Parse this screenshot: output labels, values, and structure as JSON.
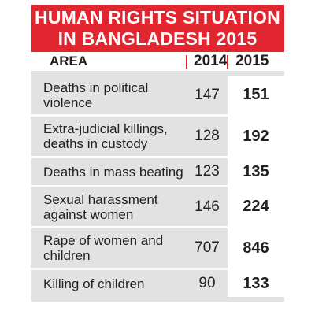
{
  "header": {
    "title_line1": "HUMAN RIGHTS SITUATION",
    "title_line2": "IN BANGLADESH 2015"
  },
  "chart_data": {
    "type": "table",
    "title": "HUMAN RIGHTS SITUATION IN BANGLADESH 2015",
    "columns": [
      "AREA",
      "2014",
      "2015"
    ],
    "rows": [
      {
        "area_lines": [
          "Deaths in political",
          "violence"
        ],
        "v2014": "147",
        "v2015": "151"
      },
      {
        "area_lines": [
          "Extra-judicial killings,",
          "deaths in custody"
        ],
        "v2014": "128",
        "v2015": "192"
      },
      {
        "area_lines": [
          "Deaths in mass beating"
        ],
        "v2014": "123",
        "v2015": "135"
      },
      {
        "area_lines": [
          "Sexual harassment",
          "against women"
        ],
        "v2014": "146",
        "v2015": "224"
      },
      {
        "area_lines": [
          "Rape of women and",
          "children"
        ],
        "v2014": "707",
        "v2015": "846"
      },
      {
        "area_lines": [
          "Killing of children"
        ],
        "v2014": "90",
        "v2015": "133"
      }
    ]
  },
  "colors": {
    "accent": "#e2262f",
    "row_background": "#e2e2e3",
    "highlight_column": "#ffffff"
  }
}
